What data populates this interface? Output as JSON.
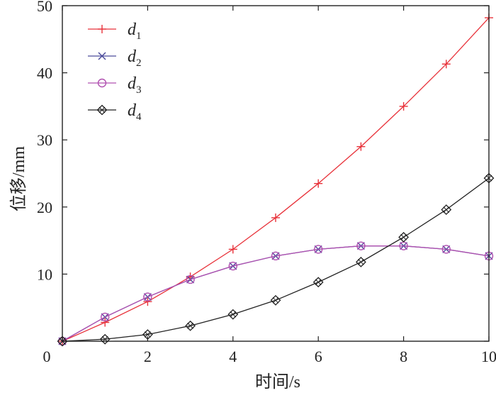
{
  "chart_data": {
    "type": "line",
    "x": [
      0,
      1,
      2,
      3,
      4,
      5,
      6,
      7,
      8,
      9,
      10
    ],
    "xlabel": "时间/s",
    "ylabel": "位移/mm",
    "xlim": [
      0,
      10
    ],
    "ylim": [
      0,
      50
    ],
    "xticks": [
      0,
      2,
      4,
      6,
      8,
      10
    ],
    "yticks": [
      0,
      10,
      20,
      30,
      40,
      50
    ],
    "xtick_labels": [
      "0",
      "2",
      "4",
      "6",
      "8",
      "10"
    ],
    "ytick_labels": [
      "0",
      "10",
      "20",
      "30",
      "40",
      "50"
    ],
    "grid": false,
    "legend": "top-left",
    "series": [
      {
        "name": "d",
        "sub": "1",
        "marker": "plus",
        "color": "#e8323a",
        "values": [
          0,
          2.8,
          5.9,
          9.6,
          13.7,
          18.4,
          23.5,
          29.0,
          35.0,
          41.3,
          48.2
        ]
      },
      {
        "name": "d",
        "sub": "2",
        "marker": "x",
        "color": "#4a4a9a",
        "values": [
          0,
          3.6,
          6.6,
          9.2,
          11.2,
          12.7,
          13.7,
          14.2,
          14.2,
          13.7,
          12.7
        ]
      },
      {
        "name": "d",
        "sub": "3",
        "marker": "circle",
        "color": "#b050b0",
        "values": [
          0,
          3.6,
          6.6,
          9.2,
          11.2,
          12.7,
          13.7,
          14.2,
          14.2,
          13.7,
          12.7
        ]
      },
      {
        "name": "d",
        "sub": "4",
        "marker": "diamond",
        "color": "#222222",
        "values": [
          0,
          0.3,
          1.0,
          2.3,
          4.0,
          6.1,
          8.8,
          11.8,
          15.5,
          19.6,
          24.3
        ]
      }
    ]
  }
}
